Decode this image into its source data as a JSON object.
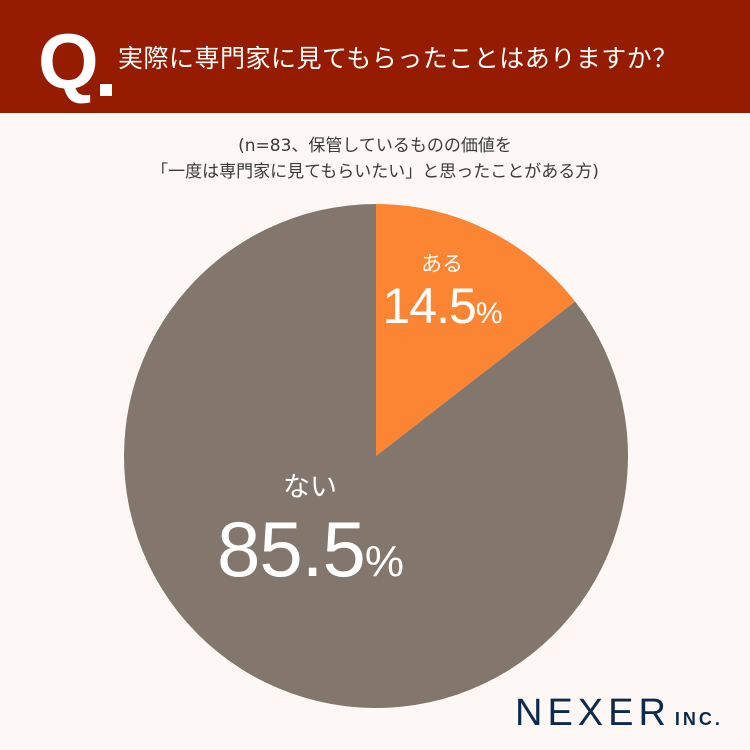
{
  "header": {
    "q_mark": "Q",
    "title": "実際に専門家に見てもらったことはありますか？",
    "background_color": "#951c00"
  },
  "subtitle": {
    "line1": "(n=83、保管しているものの価値を",
    "line2": "「一度は専門家に見てもらいたい」と思ったことがある方)"
  },
  "chart_data": {
    "type": "pie",
    "title": "実際に専門家に見てもらったことはありますか？",
    "subtitle": "(n=83、保管しているものの価値を「一度は専門家に見てもらいたい」と思ったことがある方)",
    "categories": [
      "ある",
      "ない"
    ],
    "values": [
      14.5,
      85.5
    ],
    "unit": "%",
    "colors": [
      "#fb8532",
      "#83776d"
    ],
    "start_angle": "12 o'clock, clockwise",
    "legend": "none (labels inside slices)"
  },
  "labels": {
    "aru": {
      "name": "ある",
      "value": "14.5",
      "sign": "%"
    },
    "nai": {
      "name": "ない",
      "value": "85.5",
      "sign": "%"
    }
  },
  "logo": {
    "main": "NEXER",
    "sub": "INC."
  }
}
